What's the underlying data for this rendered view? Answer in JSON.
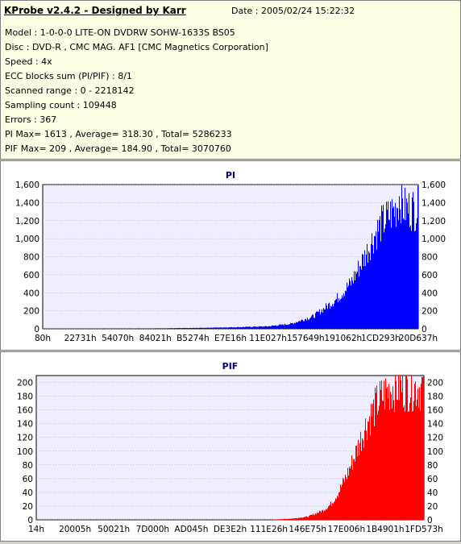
{
  "header": {
    "title": "KProbe v2.4.2 - Designed by Karr",
    "date": "Date : 2005/02/24 15:22:32"
  },
  "info_lines": [
    "Model : 1-0-0-0 LITE-ON DVDRW SOHW-1633S BS05",
    "Disc : DVD-R , CMC MAG. AF1 [CMC Magnetics Corporation]",
    "Speed : 4x",
    "ECC blocks sum (PI/PIF) : 8/1",
    "Scanned range : 0 - 2218142",
    "Sampling count : 109448",
    "Errors : 367",
    "PI Max= 1613 , Average= 318.30 , Total= 5286233",
    "PIF Max= 209 , Average= 184.90 , Total= 3070760"
  ],
  "chart_data": [
    {
      "type": "bar",
      "title": "PI",
      "color": "#0000ff",
      "plot_bg": "#eeeeff",
      "ylim": [
        0,
        1600
      ],
      "yticks": [
        0,
        200,
        400,
        600,
        800,
        1000,
        1200,
        1400,
        1600
      ],
      "ytick_labels": [
        "0",
        "200",
        "400",
        "600",
        "800",
        "1,000",
        "1,200",
        "1,400",
        "1,600"
      ],
      "xtick_labels": [
        "80h",
        "22731h",
        "54070h",
        "84021h",
        "B5274h",
        "E7E16h",
        "11E027h",
        "157649h",
        "191062h",
        "1CD293h",
        "20D637h"
      ],
      "x_fractions": [
        0,
        0.1,
        0.2,
        0.3,
        0.4,
        0.5,
        0.6,
        0.66,
        0.72,
        0.78,
        0.82,
        0.86,
        0.88,
        0.9,
        0.92,
        0.94,
        0.95,
        0.96,
        0.97,
        0.98,
        0.99,
        1.0
      ],
      "values": [
        3,
        4,
        5,
        6,
        10,
        18,
        30,
        60,
        150,
        350,
        550,
        900,
        1100,
        1250,
        1350,
        1450,
        1600,
        1450,
        1440,
        1440,
        1440,
        1440
      ]
    },
    {
      "type": "bar",
      "title": "PIF",
      "color": "#ff0000",
      "plot_bg": "#eeeeff",
      "ylim": [
        0,
        210
      ],
      "yticks": [
        0,
        20,
        40,
        60,
        80,
        100,
        120,
        140,
        160,
        180,
        200
      ],
      "ytick_labels": [
        "0",
        "20",
        "40",
        "60",
        "80",
        "100",
        "120",
        "140",
        "160",
        "180",
        "200"
      ],
      "xtick_labels": [
        "14h",
        "20005h",
        "50021h",
        "7D000h",
        "AD045h",
        "DE3E2h",
        "111E26h",
        "146E75h",
        "17E006h",
        "1B4901h",
        "1FD573h"
      ],
      "x_fractions": [
        0,
        0.6,
        0.66,
        0.7,
        0.74,
        0.76,
        0.78,
        0.8,
        0.82,
        0.85,
        0.88,
        0.9,
        0.92,
        1.0
      ],
      "values": [
        0,
        0,
        2,
        5,
        15,
        25,
        45,
        70,
        100,
        150,
        185,
        200,
        209,
        209
      ]
    }
  ]
}
